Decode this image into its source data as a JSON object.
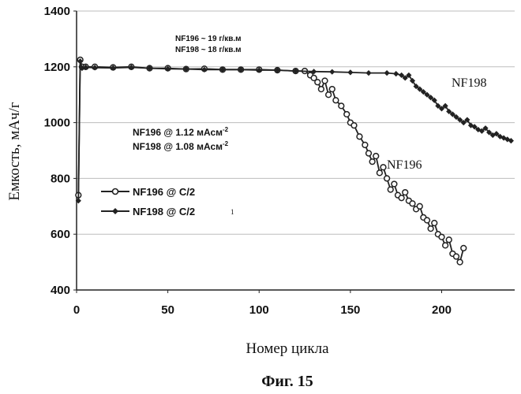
{
  "chart_data": {
    "type": "line",
    "xlabel": "Номер цикла",
    "ylabel": "Емкость, мАч/г",
    "caption": "Фиг. 15",
    "xlim": [
      0,
      240
    ],
    "ylim": [
      400,
      1400
    ],
    "xticks": [
      "0",
      "50",
      "100",
      "150",
      "200"
    ],
    "yticks": [
      "400",
      "600",
      "800",
      "1000",
      "1200",
      "1400"
    ],
    "grid_y": true,
    "annotations": {
      "loading_1": "NF196 ~ 19 г/кв.м",
      "loading_2": "NF198 ~ 18 г/кв.м",
      "current_1": "NF196 @ 1.12 мАсм",
      "current_1_exp": "-2",
      "current_2": "NF198 @ 1.08 мАсм",
      "current_2_exp": "-2",
      "label_nf196": "NF196",
      "label_nf198": "NF198",
      "stray_mark": "1"
    },
    "legend": [
      {
        "name": "NF196 @ C/2",
        "marker": "circle"
      },
      {
        "name": "NF198 @ C/2",
        "marker": "diamond"
      }
    ],
    "series": [
      {
        "name": "NF196 @ C/2",
        "marker": "circle",
        "x": [
          1,
          2,
          3,
          5,
          10,
          20,
          30,
          40,
          50,
          60,
          70,
          80,
          90,
          100,
          110,
          120,
          125,
          128,
          130,
          132,
          134,
          136,
          138,
          140,
          142,
          145,
          148,
          150,
          152,
          155,
          158,
          160,
          162,
          164,
          166,
          168,
          170,
          172,
          174,
          176,
          178,
          180,
          182,
          184,
          186,
          188,
          190,
          192,
          194,
          196,
          198,
          200,
          202,
          204,
          206,
          208,
          210,
          212
        ],
        "values": [
          740,
          1225,
          1200,
          1200,
          1200,
          1198,
          1200,
          1195,
          1195,
          1192,
          1193,
          1190,
          1190,
          1190,
          1188,
          1185,
          1185,
          1170,
          1160,
          1145,
          1120,
          1150,
          1100,
          1120,
          1080,
          1060,
          1030,
          1000,
          990,
          950,
          920,
          890,
          860,
          880,
          820,
          840,
          800,
          760,
          780,
          740,
          730,
          750,
          720,
          710,
          690,
          700,
          660,
          650,
          620,
          640,
          600,
          590,
          560,
          580,
          530,
          520,
          500,
          550
        ]
      },
      {
        "name": "NF198 @ C/2",
        "marker": "diamond",
        "x": [
          1,
          2,
          3,
          5,
          10,
          20,
          30,
          40,
          50,
          60,
          70,
          80,
          90,
          100,
          110,
          120,
          130,
          140,
          150,
          160,
          170,
          175,
          178,
          180,
          182,
          184,
          186,
          188,
          190,
          192,
          194,
          196,
          198,
          200,
          202,
          204,
          206,
          208,
          210,
          212,
          214,
          216,
          218,
          220,
          222,
          224,
          226,
          228,
          230,
          232,
          234,
          236,
          238
        ],
        "values": [
          720,
          1220,
          1195,
          1198,
          1197,
          1196,
          1198,
          1195,
          1193,
          1192,
          1190,
          1190,
          1190,
          1188,
          1188,
          1185,
          1183,
          1182,
          1180,
          1178,
          1178,
          1175,
          1170,
          1160,
          1170,
          1150,
          1130,
          1120,
          1110,
          1100,
          1090,
          1080,
          1060,
          1050,
          1060,
          1040,
          1030,
          1020,
          1010,
          1000,
          1010,
          990,
          985,
          975,
          970,
          980,
          965,
          955,
          960,
          950,
          945,
          940,
          935
        ]
      }
    ]
  }
}
